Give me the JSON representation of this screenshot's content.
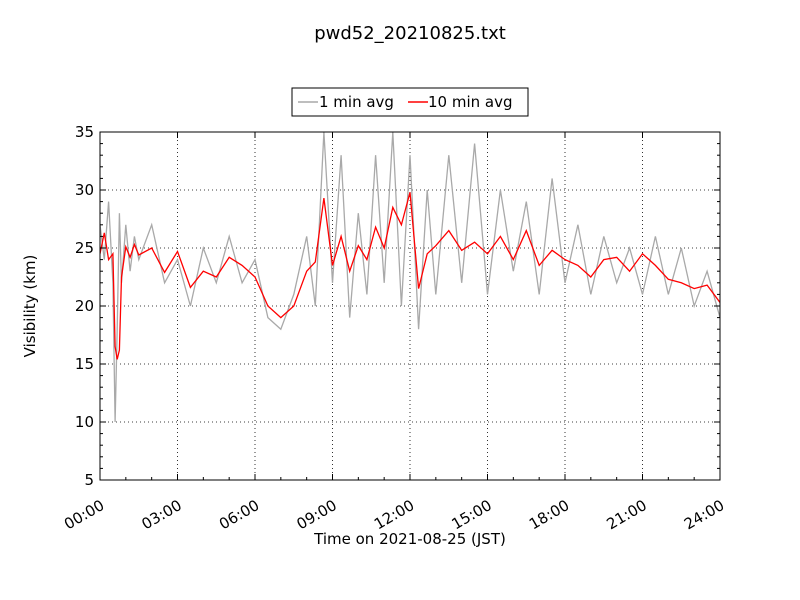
{
  "chart_data": {
    "type": "line",
    "title": "pwd52_20210825.txt",
    "xlabel": "Time on 2021-08-25 (JST)",
    "ylabel": "Visibility (km)",
    "xlim": [
      "00:00",
      "24:00"
    ],
    "ylim": [
      5,
      35
    ],
    "x_tick_labels": [
      "00:00",
      "03:00",
      "06:00",
      "09:00",
      "12:00",
      "15:00",
      "18:00",
      "21:00",
      "24:00"
    ],
    "y_tick_labels": [
      "5",
      "10",
      "15",
      "20",
      "25",
      "30",
      "35"
    ],
    "grid": true,
    "legend_position": "top-center",
    "series": [
      {
        "name": "1 min avg",
        "color": "#a9a9a9",
        "x": [
          "00:00",
          "00:10",
          "00:20",
          "00:30",
          "00:35",
          "00:40",
          "00:45",
          "00:50",
          "01:00",
          "01:10",
          "01:20",
          "01:30",
          "02:00",
          "02:30",
          "03:00",
          "03:30",
          "04:00",
          "04:30",
          "05:00",
          "05:30",
          "06:00",
          "06:30",
          "07:00",
          "07:30",
          "08:00",
          "08:20",
          "08:40",
          "09:00",
          "09:20",
          "09:40",
          "10:00",
          "10:20",
          "10:40",
          "11:00",
          "11:20",
          "11:40",
          "12:00",
          "12:20",
          "12:40",
          "13:00",
          "13:30",
          "14:00",
          "14:30",
          "15:00",
          "15:30",
          "16:00",
          "16:30",
          "17:00",
          "17:30",
          "18:00",
          "18:30",
          "19:00",
          "19:30",
          "20:00",
          "20:30",
          "21:00",
          "21:30",
          "22:00",
          "22:30",
          "23:00",
          "23:30",
          "24:00"
        ],
        "values": [
          27,
          24,
          29,
          22,
          10,
          18,
          28,
          22,
          27,
          23,
          26,
          24,
          27,
          22,
          24,
          20,
          25,
          22,
          26,
          22,
          24,
          19,
          18,
          21,
          26,
          20,
          35,
          22,
          33,
          19,
          28,
          21,
          33,
          22,
          35,
          20,
          33,
          18,
          30,
          21,
          33,
          22,
          34,
          21,
          30,
          23,
          29,
          21,
          31,
          22,
          27,
          21,
          26,
          22,
          25,
          21,
          26,
          21,
          25,
          20,
          23,
          19
        ]
      },
      {
        "name": "10 min avg",
        "color": "#ff0000",
        "x": [
          "00:00",
          "00:10",
          "00:20",
          "00:30",
          "00:35",
          "00:40",
          "00:45",
          "00:50",
          "01:00",
          "01:10",
          "01:20",
          "01:30",
          "02:00",
          "02:30",
          "03:00",
          "03:30",
          "04:00",
          "04:30",
          "05:00",
          "05:30",
          "06:00",
          "06:30",
          "07:00",
          "07:30",
          "08:00",
          "08:20",
          "08:40",
          "09:00",
          "09:20",
          "09:40",
          "10:00",
          "10:20",
          "10:40",
          "11:00",
          "11:20",
          "11:40",
          "12:00",
          "12:20",
          "12:40",
          "13:00",
          "13:30",
          "14:00",
          "14:30",
          "15:00",
          "15:30",
          "16:00",
          "16:30",
          "17:00",
          "17:30",
          "18:00",
          "18:30",
          "19:00",
          "19:30",
          "20:00",
          "20:30",
          "21:00",
          "21:30",
          "22:00",
          "22:30",
          "23:00",
          "23:30",
          "24:00"
        ],
        "values": [
          24.5,
          26.3,
          24.0,
          24.5,
          16.5,
          15.4,
          16.2,
          22.5,
          25.1,
          24.2,
          25.3,
          24.4,
          25.0,
          22.9,
          24.7,
          21.6,
          23.0,
          22.5,
          24.2,
          23.5,
          22.5,
          20.0,
          19.0,
          20.0,
          23.0,
          23.8,
          29.3,
          23.5,
          26.0,
          23.0,
          25.2,
          24.0,
          26.8,
          25.0,
          28.5,
          27.0,
          29.8,
          21.5,
          24.5,
          25.2,
          26.5,
          24.8,
          25.5,
          24.5,
          26.0,
          24.0,
          26.5,
          23.5,
          24.8,
          24.0,
          23.5,
          22.5,
          24.0,
          24.2,
          23.0,
          24.5,
          23.5,
          22.3,
          22.0,
          21.5,
          21.8,
          20.3
        ]
      }
    ]
  }
}
